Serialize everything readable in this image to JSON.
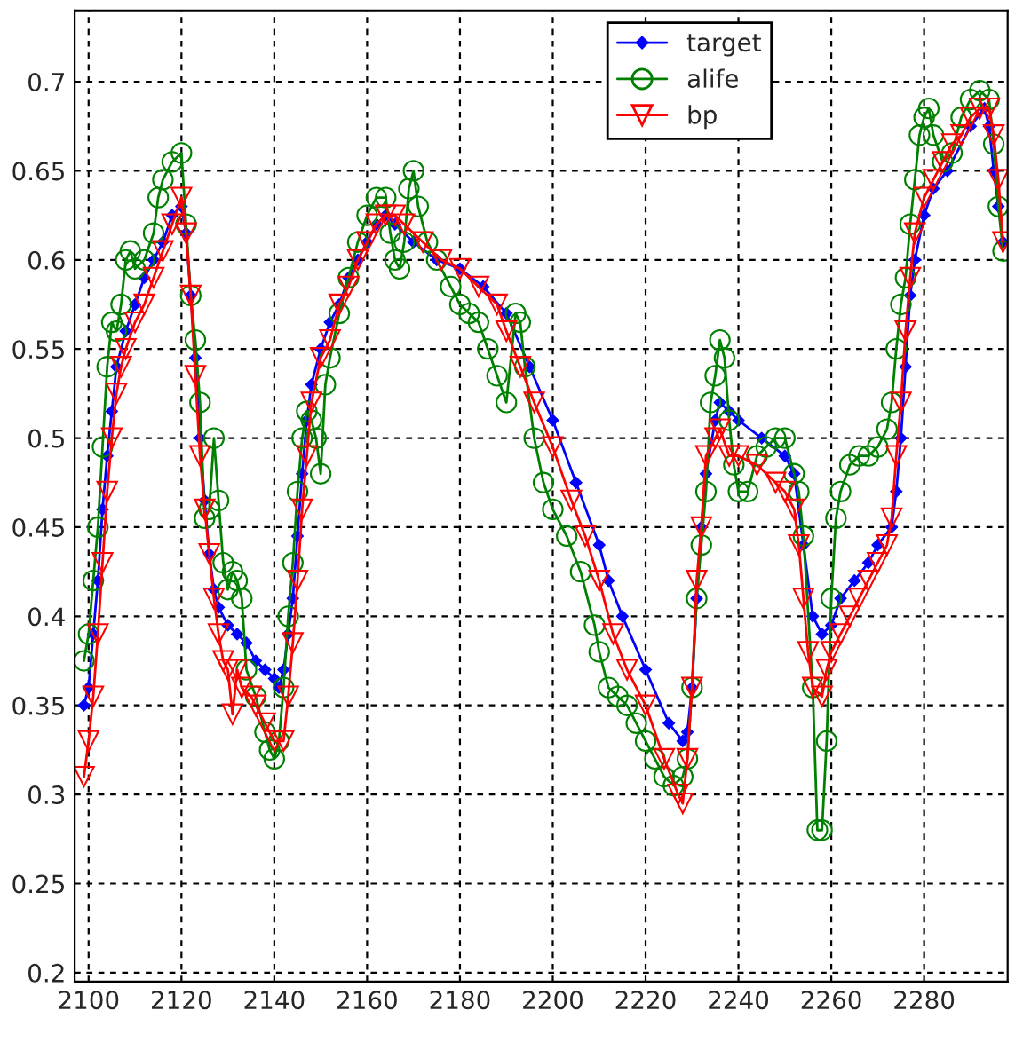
{
  "chart_data": {
    "type": "line",
    "xlim": [
      2097,
      2298
    ],
    "ylim": [
      0.195,
      0.74
    ],
    "xticks": [
      2100,
      2120,
      2140,
      2160,
      2180,
      2200,
      2220,
      2240,
      2260,
      2280
    ],
    "yticks": [
      0.2,
      0.25,
      0.3,
      0.35,
      0.4,
      0.45,
      0.5,
      0.55,
      0.6,
      0.65,
      0.7
    ],
    "grid": true,
    "legend": "top right",
    "line_style": "solid",
    "series": [
      {
        "name": "target",
        "color": "#0000ff",
        "marker": "diamond",
        "x": [
          2099,
          2100,
          2101,
          2102,
          2103,
          2104,
          2105,
          2106,
          2108,
          2110,
          2112,
          2114,
          2116,
          2118,
          2120,
          2121,
          2122,
          2123,
          2124,
          2125,
          2126,
          2127,
          2128,
          2130,
          2132,
          2134,
          2136,
          2138,
          2140,
          2141,
          2142,
          2143,
          2144,
          2145,
          2146,
          2147,
          2148,
          2150,
          2152,
          2154,
          2156,
          2158,
          2160,
          2162,
          2164,
          2166,
          2170,
          2175,
          2180,
          2185,
          2190,
          2195,
          2200,
          2205,
          2210,
          2212,
          2215,
          2220,
          2225,
          2228,
          2229,
          2230,
          2231,
          2232,
          2233,
          2235,
          2236,
          2238,
          2240,
          2245,
          2250,
          2252,
          2254,
          2256,
          2258,
          2260,
          2262,
          2265,
          2268,
          2270,
          2273,
          2274,
          2275,
          2276,
          2277,
          2278,
          2280,
          2282,
          2285,
          2290,
          2293,
          2294,
          2295,
          2296,
          2297
        ],
        "values": [
          0.35,
          0.36,
          0.39,
          0.42,
          0.46,
          0.49,
          0.515,
          0.54,
          0.56,
          0.575,
          0.59,
          0.6,
          0.61,
          0.625,
          0.63,
          0.615,
          0.58,
          0.545,
          0.5,
          0.465,
          0.435,
          0.415,
          0.405,
          0.395,
          0.39,
          0.385,
          0.375,
          0.37,
          0.365,
          0.36,
          0.37,
          0.39,
          0.41,
          0.445,
          0.48,
          0.51,
          0.53,
          0.55,
          0.565,
          0.575,
          0.59,
          0.6,
          0.61,
          0.62,
          0.625,
          0.62,
          0.61,
          0.6,
          0.595,
          0.585,
          0.57,
          0.54,
          0.51,
          0.475,
          0.44,
          0.42,
          0.4,
          0.37,
          0.34,
          0.33,
          0.335,
          0.36,
          0.41,
          0.45,
          0.48,
          0.51,
          0.52,
          0.515,
          0.51,
          0.5,
          0.49,
          0.48,
          0.44,
          0.4,
          0.39,
          0.395,
          0.41,
          0.42,
          0.43,
          0.44,
          0.45,
          0.47,
          0.5,
          0.54,
          0.58,
          0.6,
          0.625,
          0.64,
          0.65,
          0.675,
          0.685,
          0.675,
          0.65,
          0.63,
          0.61
        ]
      },
      {
        "name": "alife",
        "color": "#008000",
        "marker": "circle",
        "x": [
          2099,
          2100,
          2101,
          2102,
          2103,
          2104,
          2105,
          2106,
          2107,
          2108,
          2109,
          2110,
          2112,
          2114,
          2115,
          2116,
          2118,
          2120,
          2121,
          2122,
          2123,
          2124,
          2125,
          2126,
          2127,
          2128,
          2129,
          2130,
          2131,
          2132,
          2133,
          2134,
          2136,
          2138,
          2139,
          2140,
          2141,
          2142,
          2143,
          2144,
          2145,
          2146,
          2147,
          2148,
          2149,
          2150,
          2151,
          2152,
          2154,
          2156,
          2158,
          2160,
          2162,
          2164,
          2165,
          2166,
          2167,
          2168,
          2169,
          2170,
          2171,
          2173,
          2175,
          2178,
          2180,
          2182,
          2184,
          2186,
          2188,
          2190,
          2192,
          2193,
          2194,
          2196,
          2198,
          2200,
          2203,
          2206,
          2209,
          2210,
          2212,
          2214,
          2216,
          2218,
          2220,
          2222,
          2224,
          2226,
          2228,
          2229,
          2230,
          2231,
          2232,
          2233,
          2234,
          2235,
          2236,
          2237,
          2238,
          2239,
          2240,
          2242,
          2244,
          2246,
          2248,
          2250,
          2252,
          2253,
          2254,
          2256,
          2257,
          2258,
          2259,
          2260,
          2261,
          2262,
          2264,
          2266,
          2268,
          2270,
          2272,
          2273,
          2274,
          2275,
          2276,
          2277,
          2278,
          2279,
          2280,
          2281,
          2282,
          2284,
          2286,
          2288,
          2290,
          2292,
          2294,
          2295,
          2296,
          2297
        ],
        "values": [
          0.375,
          0.39,
          0.42,
          0.45,
          0.495,
          0.54,
          0.565,
          0.56,
          0.575,
          0.6,
          0.605,
          0.595,
          0.6,
          0.615,
          0.635,
          0.645,
          0.655,
          0.66,
          0.62,
          0.58,
          0.555,
          0.52,
          0.455,
          0.46,
          0.5,
          0.465,
          0.43,
          0.415,
          0.425,
          0.42,
          0.41,
          0.37,
          0.355,
          0.335,
          0.325,
          0.32,
          0.33,
          0.36,
          0.4,
          0.43,
          0.47,
          0.5,
          0.515,
          0.51,
          0.5,
          0.48,
          0.53,
          0.545,
          0.57,
          0.59,
          0.61,
          0.625,
          0.635,
          0.635,
          0.615,
          0.6,
          0.595,
          0.61,
          0.64,
          0.65,
          0.63,
          0.61,
          0.6,
          0.585,
          0.575,
          0.57,
          0.565,
          0.55,
          0.535,
          0.52,
          0.57,
          0.565,
          0.54,
          0.5,
          0.475,
          0.46,
          0.445,
          0.425,
          0.395,
          0.38,
          0.36,
          0.355,
          0.35,
          0.34,
          0.33,
          0.32,
          0.31,
          0.305,
          0.31,
          0.32,
          0.36,
          0.41,
          0.44,
          0.47,
          0.52,
          0.535,
          0.555,
          0.545,
          0.51,
          0.485,
          0.47,
          0.47,
          0.49,
          0.495,
          0.5,
          0.5,
          0.48,
          0.47,
          0.445,
          0.36,
          0.28,
          0.28,
          0.33,
          0.41,
          0.455,
          0.47,
          0.485,
          0.49,
          0.49,
          0.495,
          0.505,
          0.52,
          0.55,
          0.575,
          0.59,
          0.62,
          0.645,
          0.67,
          0.68,
          0.685,
          0.67,
          0.655,
          0.66,
          0.68,
          0.69,
          0.695,
          0.69,
          0.665,
          0.63,
          0.605
        ]
      },
      {
        "name": "bp",
        "color": "#ff0000",
        "marker": "triangle",
        "x": [
          2099,
          2100,
          2101,
          2102,
          2103,
          2104,
          2105,
          2106,
          2107,
          2108,
          2110,
          2112,
          2114,
          2116,
          2118,
          2120,
          2121,
          2122,
          2123,
          2124,
          2125,
          2126,
          2127,
          2128,
          2129,
          2130,
          2131,
          2132,
          2133,
          2135,
          2136,
          2138,
          2140,
          2142,
          2143,
          2144,
          2145,
          2146,
          2147,
          2148,
          2150,
          2152,
          2154,
          2156,
          2158,
          2160,
          2162,
          2164,
          2166,
          2168,
          2172,
          2176,
          2180,
          2184,
          2188,
          2190,
          2193,
          2196,
          2200,
          2204,
          2207,
          2210,
          2213,
          2216,
          2220,
          2224,
          2227,
          2228,
          2229,
          2230,
          2231,
          2232,
          2233,
          2235,
          2236,
          2238,
          2240,
          2244,
          2248,
          2250,
          2252,
          2253,
          2254,
          2255,
          2256,
          2258,
          2259,
          2260,
          2262,
          2264,
          2266,
          2268,
          2270,
          2272,
          2273,
          2274,
          2275,
          2276,
          2277,
          2278,
          2280,
          2282,
          2284,
          2286,
          2288,
          2290,
          2292,
          2294,
          2295,
          2296,
          2297
        ],
        "values": [
          0.31,
          0.33,
          0.355,
          0.39,
          0.43,
          0.47,
          0.5,
          0.525,
          0.54,
          0.55,
          0.565,
          0.575,
          0.59,
          0.605,
          0.62,
          0.635,
          0.615,
          0.58,
          0.535,
          0.49,
          0.46,
          0.435,
          0.41,
          0.39,
          0.375,
          0.37,
          0.345,
          0.37,
          0.36,
          0.355,
          0.35,
          0.34,
          0.33,
          0.33,
          0.355,
          0.385,
          0.42,
          0.46,
          0.49,
          0.52,
          0.545,
          0.555,
          0.575,
          0.585,
          0.6,
          0.61,
          0.62,
          0.625,
          0.625,
          0.62,
          0.61,
          0.6,
          0.595,
          0.585,
          0.575,
          0.56,
          0.54,
          0.52,
          0.495,
          0.465,
          0.445,
          0.42,
          0.39,
          0.37,
          0.35,
          0.32,
          0.3,
          0.295,
          0.32,
          0.36,
          0.42,
          0.45,
          0.49,
          0.5,
          0.505,
          0.49,
          0.49,
          0.485,
          0.475,
          0.47,
          0.46,
          0.44,
          0.41,
          0.38,
          0.36,
          0.355,
          0.37,
          0.38,
          0.39,
          0.4,
          0.41,
          0.42,
          0.43,
          0.44,
          0.455,
          0.49,
          0.52,
          0.56,
          0.59,
          0.615,
          0.635,
          0.645,
          0.655,
          0.665,
          0.67,
          0.68,
          0.685,
          0.685,
          0.67,
          0.645,
          0.61
        ]
      }
    ]
  }
}
